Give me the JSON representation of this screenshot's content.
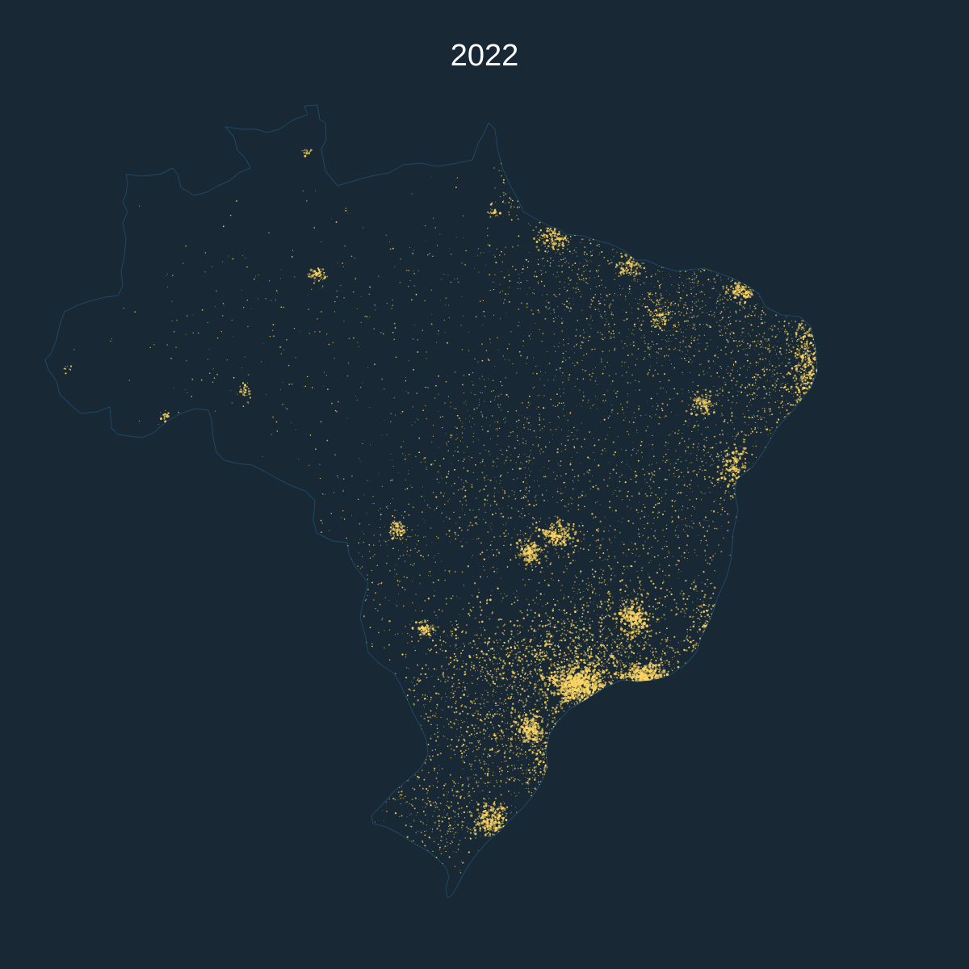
{
  "title": "2022",
  "colors": {
    "background": "#182834",
    "land": "#182834",
    "border": "#1f4866",
    "light": "#fcd563"
  }
}
